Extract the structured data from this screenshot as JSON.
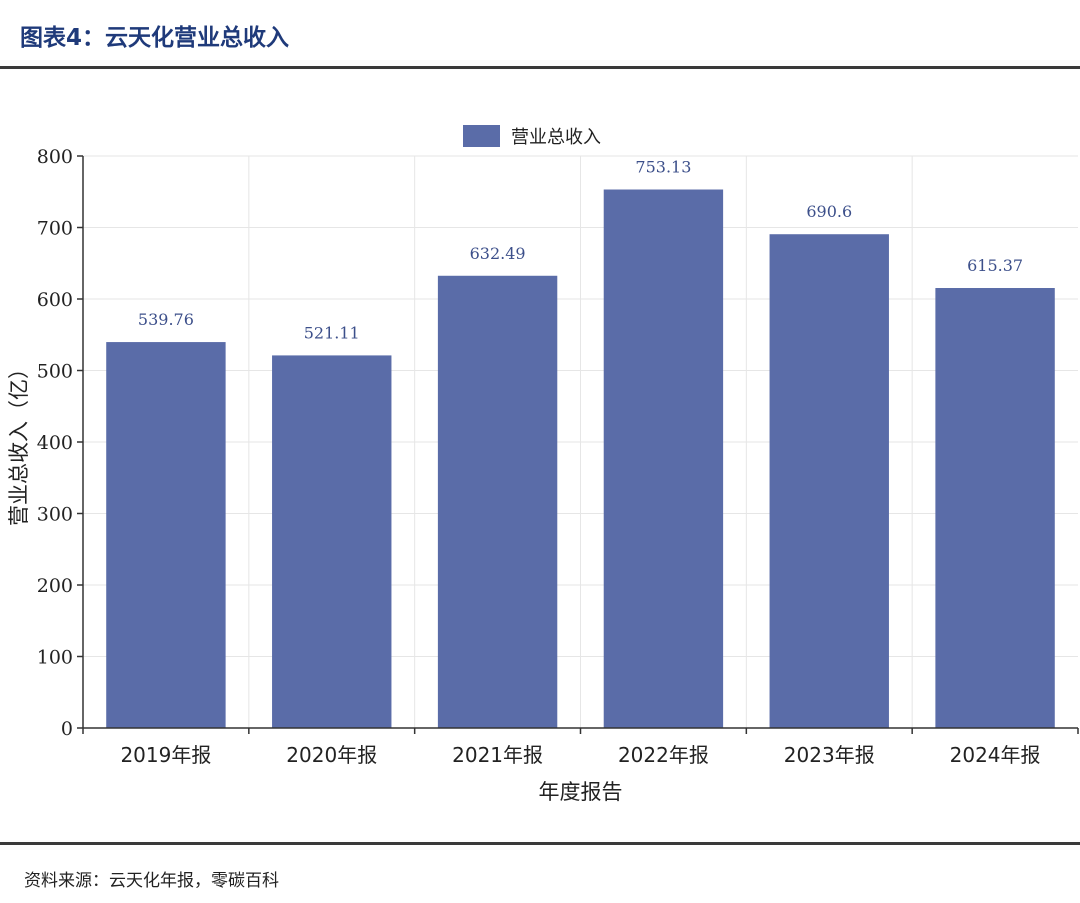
{
  "figure": {
    "title": "图表4：云天化营业总收入",
    "source": "资料来源：云天化年报，零碳百科"
  },
  "chart_data": {
    "type": "bar",
    "categories": [
      "2019年报",
      "2020年报",
      "2021年报",
      "2022年报",
      "2023年报",
      "2024年报"
    ],
    "series": [
      {
        "name": "营业总收入",
        "values": [
          539.76,
          521.11,
          632.49,
          753.13,
          690.6,
          615.37
        ],
        "labels": [
          "539.76",
          "521.11",
          "632.49",
          "753.13",
          "690.6",
          "615.37"
        ],
        "color": "#5a6ca8"
      }
    ],
    "xlabel": "年度报告",
    "ylabel": "营业总收入（亿）",
    "ylim": [
      0,
      800
    ],
    "yticks": [
      0,
      100,
      200,
      300,
      400,
      500,
      600,
      700,
      800
    ],
    "grid": true,
    "legend": "top-center"
  }
}
